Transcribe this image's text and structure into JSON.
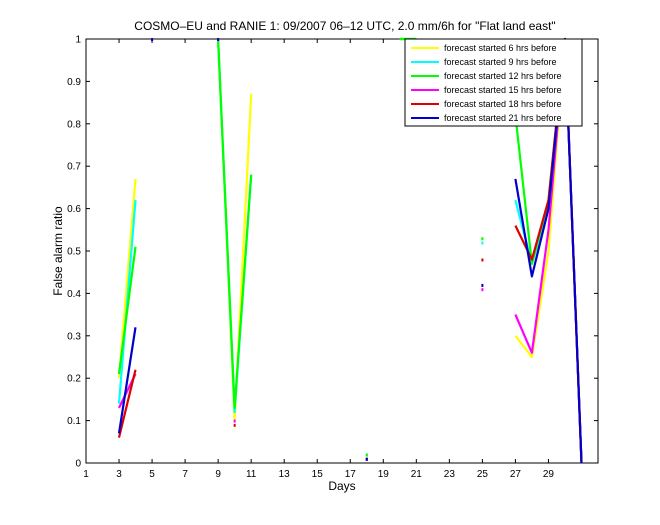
{
  "chart_data": {
    "type": "line",
    "title": "COSMO–EU and RANIE 1: 09/2007 06–12 UTC, 2.0 mm/6h for \"Flat land east\"",
    "xlabel": "Days",
    "ylabel": "False alarm ratio",
    "xlim": [
      1,
      32
    ],
    "ylim": [
      0,
      1
    ],
    "xticks": [
      "1",
      "3",
      "5",
      "7",
      "9",
      "11",
      "13",
      "15",
      "17",
      "19",
      "21",
      "23",
      "25",
      "27",
      "29"
    ],
    "yticks": [
      "0",
      "0.1",
      "0.2",
      "0.3",
      "0.4",
      "0.5",
      "0.6",
      "0.7",
      "0.8",
      "0.9",
      "1"
    ],
    "legend_position": "top-right",
    "series": [
      {
        "name": "forecast started 6 hrs before",
        "color": "#ffff00",
        "segments": [
          [
            [
              3,
              0.2
            ],
            [
              4,
              0.67
            ]
          ],
          [
            [
              5,
              1.0
            ]
          ],
          [
            [
              9,
              1.0
            ],
            [
              10,
              0.1
            ],
            [
              11,
              0.87
            ]
          ],
          [
            [
              18,
              0.01
            ]
          ],
          [
            [
              20,
              1.0
            ],
            [
              21,
              1.0
            ]
          ],
          [
            [
              25,
              0.53
            ]
          ],
          [
            [
              27,
              0.3
            ],
            [
              28,
              0.25
            ],
            [
              29,
              0.5
            ],
            [
              30,
              1.0
            ],
            [
              31,
              0.0
            ]
          ]
        ]
      },
      {
        "name": "forecast started 9 hrs before",
        "color": "#00ffff",
        "segments": [
          [
            [
              3,
              0.14
            ],
            [
              4,
              0.62
            ]
          ],
          [
            [
              5,
              1.0
            ]
          ],
          [
            [
              9,
              1.0
            ],
            [
              10,
              0.12
            ],
            [
              11,
              0.68
            ]
          ],
          [
            [
              18,
              0.02
            ]
          ],
          [
            [
              20,
              1.0
            ],
            [
              21,
              1.0
            ]
          ],
          [
            [
              25,
              0.52
            ]
          ],
          [
            [
              27,
              0.62
            ],
            [
              28,
              0.47
            ],
            [
              29,
              0.6
            ],
            [
              30,
              1.0
            ],
            [
              31,
              0.0
            ]
          ]
        ]
      },
      {
        "name": "forecast started 12 hrs before",
        "color": "#00ff00",
        "segments": [
          [
            [
              3,
              0.21
            ],
            [
              4,
              0.51
            ]
          ],
          [
            [
              5,
              1.0
            ]
          ],
          [
            [
              9,
              1.0
            ],
            [
              10,
              0.13
            ],
            [
              11,
              0.68
            ]
          ],
          [
            [
              18,
              0.02
            ]
          ],
          [
            [
              20,
              1.0
            ],
            [
              21,
              1.0
            ]
          ],
          [
            [
              25,
              0.53
            ]
          ],
          [
            [
              27,
              0.82
            ],
            [
              28,
              0.47
            ],
            [
              29,
              0.62
            ],
            [
              30,
              1.0
            ],
            [
              31,
              0.0
            ]
          ]
        ]
      },
      {
        "name": "forecast started 15 hrs before",
        "color": "#ff00ff",
        "segments": [
          [
            [
              3,
              0.13
            ],
            [
              4,
              0.21
            ]
          ],
          [
            [
              5,
              1.0
            ]
          ],
          [
            [
              9,
              1.0
            ]
          ],
          [
            [
              10,
              0.1
            ]
          ],
          [
            [
              18,
              0.01
            ]
          ],
          [
            [
              25,
              0.41
            ]
          ],
          [
            [
              27,
              0.35
            ],
            [
              28,
              0.26
            ],
            [
              29,
              0.55
            ],
            [
              30,
              1.0
            ],
            [
              31,
              0.0
            ]
          ]
        ]
      },
      {
        "name": "forecast started 18 hrs before",
        "color": "#dd0000",
        "segments": [
          [
            [
              3,
              0.06
            ],
            [
              4,
              0.22
            ]
          ],
          [
            [
              5,
              1.0
            ]
          ],
          [
            [
              9,
              1.0
            ]
          ],
          [
            [
              10,
              0.09
            ]
          ],
          [
            [
              18,
              0.01
            ]
          ],
          [
            [
              25,
              0.48
            ]
          ],
          [
            [
              27,
              0.56
            ],
            [
              28,
              0.48
            ],
            [
              29,
              0.62
            ],
            [
              30,
              1.0
            ],
            [
              31,
              0.0
            ]
          ]
        ]
      },
      {
        "name": "forecast started 21 hrs before",
        "color": "#0000cc",
        "segments": [
          [
            [
              3,
              0.07
            ],
            [
              4,
              0.32
            ]
          ],
          [
            [
              5,
              1.0
            ]
          ],
          [
            [
              9,
              1.0
            ]
          ],
          [
            [
              18,
              0.01
            ]
          ],
          [
            [
              25,
              0.42
            ]
          ],
          [
            [
              27,
              0.67
            ],
            [
              28,
              0.44
            ],
            [
              29,
              0.6
            ],
            [
              30,
              1.0
            ],
            [
              31,
              0.0
            ]
          ]
        ]
      }
    ]
  }
}
